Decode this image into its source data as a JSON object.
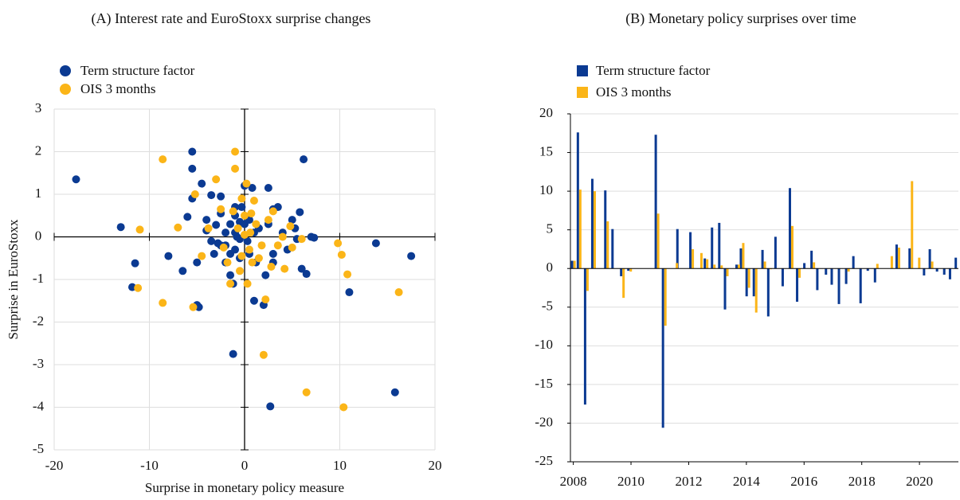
{
  "chart_data": [
    {
      "type": "scatter",
      "title": "(A) Interest rate and EuroStoxx surprise changes",
      "x_label": "Surprise in monetary policy measure",
      "y_label": "Surprise in EuroStoxx",
      "xlim": [
        -20,
        20
      ],
      "ylim": [
        -5,
        3
      ],
      "xticks": [
        -20,
        -10,
        0,
        10,
        20
      ],
      "yticks": [
        -5,
        -4,
        -3,
        -2,
        -1,
        0,
        1,
        2,
        3
      ],
      "grid": true,
      "series": [
        {
          "name": "Term structure factor",
          "color": "#0b3a92",
          "x": [
            -17.7,
            -13,
            -11.5,
            -11.8,
            -8,
            -6.5,
            -6,
            -5.5,
            -5.5,
            -5.5,
            -5,
            -5,
            -4.8,
            -4.5,
            -4,
            -4,
            -3.5,
            -3.5,
            -3.2,
            -3,
            -2.8,
            -2.5,
            -2.5,
            -2,
            -2,
            -2,
            -1.5,
            -1.5,
            -1.5,
            -1.2,
            -1.2,
            -1,
            -1,
            -1,
            -0.8,
            -0.5,
            -0.5,
            -0.3,
            0,
            0,
            0.3,
            0.5,
            0.5,
            0.8,
            1,
            1,
            1.2,
            1.5,
            2,
            2.2,
            2.5,
            2.5,
            2.7,
            3,
            3,
            3,
            3.5,
            4,
            4.5,
            5,
            5.3,
            5.5,
            5.8,
            6,
            6.2,
            6.5,
            7,
            7.3,
            13.8,
            11,
            15.8,
            17.5,
            -1,
            -2.5,
            -0.5
          ],
          "y": [
            1.35,
            0.23,
            -0.62,
            -1.18,
            -0.45,
            -0.8,
            0.47,
            2.0,
            1.6,
            0.9,
            -0.6,
            -1.6,
            -1.65,
            1.25,
            0.4,
            0.15,
            0.98,
            -0.1,
            -0.4,
            0.28,
            -0.15,
            0.95,
            -0.2,
            0.1,
            -0.6,
            -0.2,
            0.3,
            -0.4,
            -0.9,
            -1.1,
            -2.75,
            0.5,
            0.1,
            -0.3,
            0.0,
            0.35,
            -0.5,
            0.7,
            1.2,
            0.3,
            -0.1,
            0.4,
            -0.4,
            1.15,
            -1.5,
            0.1,
            -0.6,
            0.2,
            -1.6,
            -0.9,
            1.15,
            0.3,
            -3.98,
            -0.6,
            0.65,
            -0.4,
            0.7,
            0.1,
            -0.3,
            0.4,
            0.2,
            -0.05,
            0.58,
            -0.75,
            1.82,
            -0.87,
            0.0,
            -0.02,
            -0.15,
            -1.3,
            -3.65,
            -0.45,
            0.7,
            0.55,
            -0.05
          ]
        },
        {
          "name": "OIS 3 months",
          "color": "#fbb518",
          "x": [
            -11,
            -11.2,
            -8.6,
            -8.6,
            -7,
            -5.2,
            -5.4,
            -4.5,
            -3.8,
            -3,
            -2.5,
            -2.2,
            -1.8,
            -1.5,
            -1.2,
            -1.0,
            -1,
            -0.7,
            -0.5,
            -0.3,
            0,
            0.2,
            0.3,
            0.5,
            0.6,
            0.8,
            1,
            1.2,
            1.5,
            1.8,
            2,
            2.2,
            2.5,
            2.8,
            3,
            3.5,
            4,
            4.2,
            4.8,
            5,
            6,
            6.5,
            9.8,
            10.2,
            10.4,
            10.8,
            16.2,
            -0.3,
            0,
            0.7
          ],
          "y": [
            0.17,
            -1.2,
            1.82,
            -1.55,
            0.22,
            1.0,
            -1.65,
            -0.45,
            0.2,
            1.35,
            0.65,
            -0.25,
            -0.6,
            -1.1,
            0.6,
            2.0,
            1.6,
            0.2,
            -0.8,
            0.9,
            0.5,
            1.25,
            -1.1,
            -0.3,
            0.1,
            -0.6,
            0.85,
            0.3,
            -0.5,
            -0.2,
            -2.77,
            -1.47,
            0.4,
            -0.7,
            0.6,
            -0.2,
            0.0,
            -0.75,
            0.25,
            -0.25,
            -0.05,
            -3.65,
            -0.15,
            -0.42,
            -4.0,
            -0.88,
            -1.3,
            -0.45,
            0.05,
            0.55
          ]
        }
      ]
    },
    {
      "type": "bar",
      "title": "(B) Monetary policy surprises over time",
      "xlim": [
        2007.9,
        2021.35
      ],
      "ylim": [
        -25,
        20
      ],
      "xticks": [
        2008,
        2010,
        2012,
        2014,
        2016,
        2018,
        2020
      ],
      "yticks": [
        -25,
        -20,
        -15,
        -10,
        -5,
        0,
        5,
        10,
        15,
        20
      ],
      "grid": true,
      "x": [
        2008.0,
        2008.2,
        2008.45,
        2008.7,
        2009.15,
        2009.4,
        2009.7,
        2009.95,
        2010.9,
        2011.15,
        2011.55,
        2011.65,
        2012.1,
        2012.4,
        2012.6,
        2012.85,
        2013.1,
        2013.3,
        2013.7,
        2013.85,
        2014.05,
        2014.3,
        2014.6,
        2014.8,
        2015.05,
        2015.3,
        2015.55,
        2015.8,
        2016.05,
        2016.3,
        2016.5,
        2016.8,
        2017.0,
        2017.25,
        2017.5,
        2017.75,
        2018.0,
        2018.25,
        2018.5,
        2019.0,
        2019.25,
        2019.7,
        2019.95,
        2020.2,
        2020.4,
        2020.65,
        2020.9,
        2021.1,
        2021.3
      ],
      "series": [
        {
          "name": "Term structure factor",
          "color": "#0b3a92",
          "values": [
            1.0,
            17.6,
            -17.6,
            11.6,
            10.1,
            5.1,
            -1.0,
            -0.3,
            17.3,
            -20.6,
            null,
            5.1,
            4.7,
            null,
            1.3,
            5.3,
            5.9,
            -5.3,
            0.5,
            2.6,
            -3.6,
            -3.6,
            2.4,
            -6.2,
            4.1,
            -2.3,
            10.4,
            -4.3,
            0.7,
            2.3,
            -2.8,
            -0.8,
            -2.1,
            -4.6,
            -2.0,
            1.6,
            -4.5,
            -0.3,
            -1.8,
            null,
            3.1,
            2.6,
            null,
            -0.9,
            2.5,
            -0.4,
            -0.8,
            -1.4,
            1.4
          ]
        },
        {
          "name": "OIS 3 months",
          "color": "#fbb518",
          "values": [
            1.0,
            10.2,
            -2.9,
            10.0,
            6.1,
            null,
            -3.8,
            -0.4,
            7.1,
            -7.4,
            0.7,
            null,
            2.5,
            2.0,
            1.2,
            0.5,
            0.4,
            -1.0,
            0.5,
            3.3,
            -2.5,
            -5.7,
            0.9,
            -0.1,
            null,
            null,
            5.5,
            -1.2,
            null,
            0.8,
            null,
            null,
            null,
            null,
            -0.4,
            null,
            null,
            null,
            0.6,
            1.6,
            2.7,
            11.3,
            1.4,
            null,
            0.9,
            null,
            null,
            null,
            null
          ]
        }
      ]
    }
  ]
}
